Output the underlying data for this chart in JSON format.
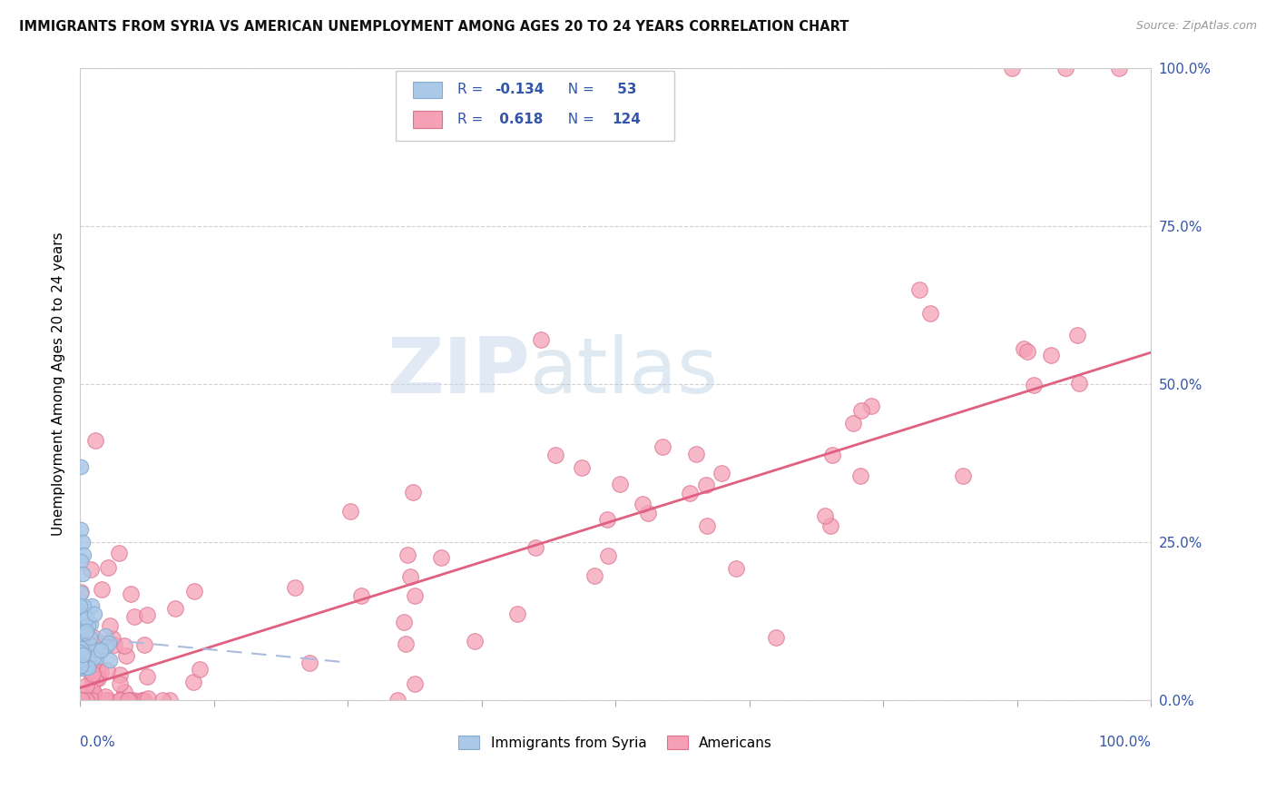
{
  "title": "IMMIGRANTS FROM SYRIA VS AMERICAN UNEMPLOYMENT AMONG AGES 20 TO 24 YEARS CORRELATION CHART",
  "source": "Source: ZipAtlas.com",
  "ylabel": "Unemployment Among Ages 20 to 24 years",
  "ytick_labels": [
    "0.0%",
    "25.0%",
    "50.0%",
    "75.0%",
    "100.0%"
  ],
  "ytick_values": [
    0.0,
    0.25,
    0.5,
    0.75,
    1.0
  ],
  "legend_items": [
    {
      "label": "Immigrants from Syria",
      "color": "#aac8e8",
      "edge": "#88aacc",
      "R": "-0.134",
      "N": "53"
    },
    {
      "label": "Americans",
      "color": "#f5a0b5",
      "edge": "#dd7090",
      "R": "0.618",
      "N": "124"
    }
  ],
  "blue_color": "#aac8e8",
  "blue_edge": "#88aacc",
  "pink_color": "#f5a0b5",
  "pink_edge": "#dd7090",
  "trend_blue_color": "#aabbdd",
  "trend_pink_color": "#e06080",
  "background_color": "#ffffff",
  "grid_color": "#cccccc",
  "legend_text_color": "#3355aa",
  "right_axis_color": "#3355aa",
  "watermark_color": "#c8d8ec"
}
